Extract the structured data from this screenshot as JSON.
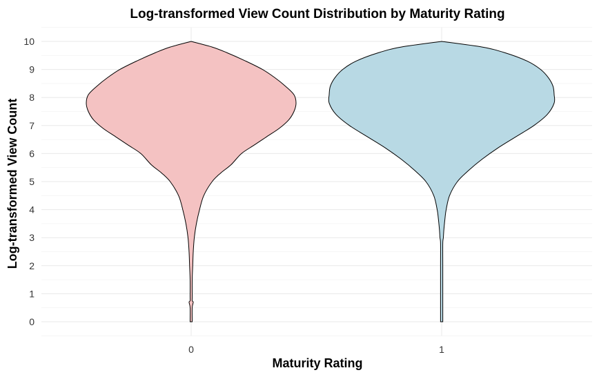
{
  "chart_data": {
    "type": "violin",
    "title": "Log-transformed View Count Distribution by Maturity Rating",
    "xlabel": "Maturity Rating",
    "ylabel": "Log-transformed View Count",
    "categories": [
      "0",
      "1"
    ],
    "ylim": [
      -0.5,
      10.5
    ],
    "yticks": [
      0,
      1,
      2,
      3,
      4,
      5,
      6,
      7,
      8,
      9,
      10
    ],
    "grid": true,
    "legend": "none",
    "series": [
      {
        "category": "0",
        "color": "#f4c2c2",
        "y": [
          0,
          0.5,
          0.7,
          0.75,
          0.9,
          1.5,
          2.0,
          2.5,
          3.0,
          3.5,
          4.0,
          4.5,
          5.0,
          5.3,
          5.6,
          6.0,
          6.3,
          6.6,
          6.9,
          7.2,
          7.5,
          7.8,
          8.1,
          8.4,
          8.7,
          9.0,
          9.3,
          9.6,
          9.8,
          10.0
        ],
        "width": [
          0.01,
          0.01,
          0.02,
          0.01,
          0.01,
          0.01,
          0.015,
          0.02,
          0.03,
          0.05,
          0.08,
          0.12,
          0.2,
          0.28,
          0.38,
          0.48,
          0.6,
          0.72,
          0.84,
          0.93,
          0.98,
          1.0,
          0.98,
          0.9,
          0.8,
          0.68,
          0.52,
          0.34,
          0.2,
          0.0
        ]
      },
      {
        "category": "1",
        "color": "#b8d9e4",
        "y": [
          0,
          1.0,
          2.0,
          2.8,
          3.0,
          3.3,
          3.7,
          4.0,
          4.5,
          5.0,
          5.4,
          5.8,
          6.2,
          6.6,
          7.0,
          7.4,
          7.8,
          8.1,
          8.4,
          8.7,
          9.0,
          9.3,
          9.6,
          9.8,
          10.0
        ],
        "width": [
          0.01,
          0.01,
          0.01,
          0.01,
          0.015,
          0.02,
          0.03,
          0.04,
          0.07,
          0.14,
          0.24,
          0.36,
          0.5,
          0.66,
          0.82,
          0.94,
          1.0,
          1.0,
          0.99,
          0.95,
          0.88,
          0.76,
          0.56,
          0.36,
          0.0
        ]
      }
    ]
  }
}
